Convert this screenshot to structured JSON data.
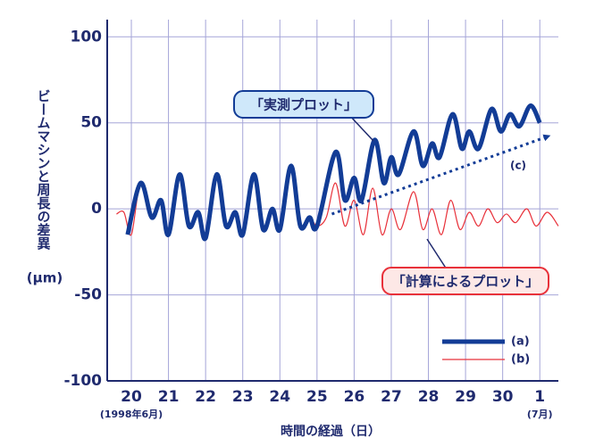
{
  "chart_data": {
    "type": "line",
    "ylabel": "ビームマシンと周長の差異",
    "yunit": "(μm)",
    "xlabel": "時間の経過（日）",
    "x_sublabels": [
      {
        "at": 20,
        "label": "(1998年6月)"
      },
      {
        "at": 31,
        "label": "(7月)"
      }
    ],
    "xlim": [
      19.35,
      31.5
    ],
    "xticks": [
      20,
      21,
      22,
      23,
      24,
      25,
      26,
      27,
      28,
      29,
      30,
      {
        "value": 31,
        "label": "1"
      }
    ],
    "ylim": [
      -100,
      110
    ],
    "yticks": [
      -100,
      -50,
      0,
      50,
      100
    ],
    "grid": true,
    "series": [
      {
        "name": "(a)",
        "color": "#123c96",
        "width": 5,
        "x": [
          19.9,
          20.25,
          20.55,
          20.8,
          21.0,
          21.3,
          21.55,
          21.8,
          22.0,
          22.3,
          22.55,
          22.8,
          23.0,
          23.3,
          23.55,
          23.8,
          24.0,
          24.3,
          24.55,
          24.8,
          25.0,
          25.5,
          25.75,
          26.0,
          26.2,
          26.55,
          26.8,
          27.0,
          27.2,
          27.6,
          27.85,
          28.1,
          28.3,
          28.65,
          28.9,
          29.1,
          29.35,
          29.7,
          29.95,
          30.2,
          30.45,
          30.75,
          31.0
        ],
        "values": [
          -15,
          15,
          -5,
          5,
          -15,
          20,
          -10,
          -2,
          -17,
          20,
          -10,
          -2,
          -15,
          20,
          -12,
          0,
          -12,
          25,
          -10,
          -5,
          -10,
          33,
          5,
          18,
          5,
          40,
          15,
          30,
          20,
          45,
          25,
          38,
          30,
          55,
          35,
          45,
          35,
          58,
          45,
          55,
          48,
          60,
          50
        ]
      },
      {
        "name": "(b)",
        "color": "#e8313a",
        "width": 1.2,
        "x": [
          19.6,
          19.8,
          20.0,
          20.25,
          20.55,
          20.8,
          21.0,
          21.3,
          21.55,
          21.8,
          22.0,
          22.3,
          22.55,
          22.8,
          23.0,
          23.3,
          23.55,
          23.8,
          24.0,
          24.3,
          24.55,
          24.8,
          25.0,
          25.25,
          25.5,
          25.75,
          26.0,
          26.25,
          26.5,
          26.75,
          27.0,
          27.25,
          27.6,
          27.85,
          28.1,
          28.35,
          28.6,
          28.85,
          29.1,
          29.35,
          29.6,
          29.85,
          30.1,
          30.35,
          30.65,
          30.9,
          31.2,
          31.5
        ],
        "values": [
          -3,
          -2,
          -15,
          15,
          -5,
          5,
          -15,
          20,
          -10,
          -2,
          -17,
          20,
          -10,
          -2,
          -15,
          20,
          -12,
          0,
          -12,
          25,
          -10,
          -5,
          -10,
          -5,
          15,
          -10,
          5,
          -15,
          12,
          -15,
          0,
          -12,
          10,
          -12,
          0,
          -15,
          5,
          -12,
          -2,
          -10,
          0,
          -8,
          -3,
          -8,
          0,
          -10,
          -2,
          -10
        ]
      }
    ],
    "trend": {
      "label": "(c)",
      "x": [
        25.4,
        31.2
      ],
      "values": [
        -3,
        42
      ]
    },
    "annotations": [
      "「実測プロット」",
      "「計算によるプロット」"
    ]
  }
}
